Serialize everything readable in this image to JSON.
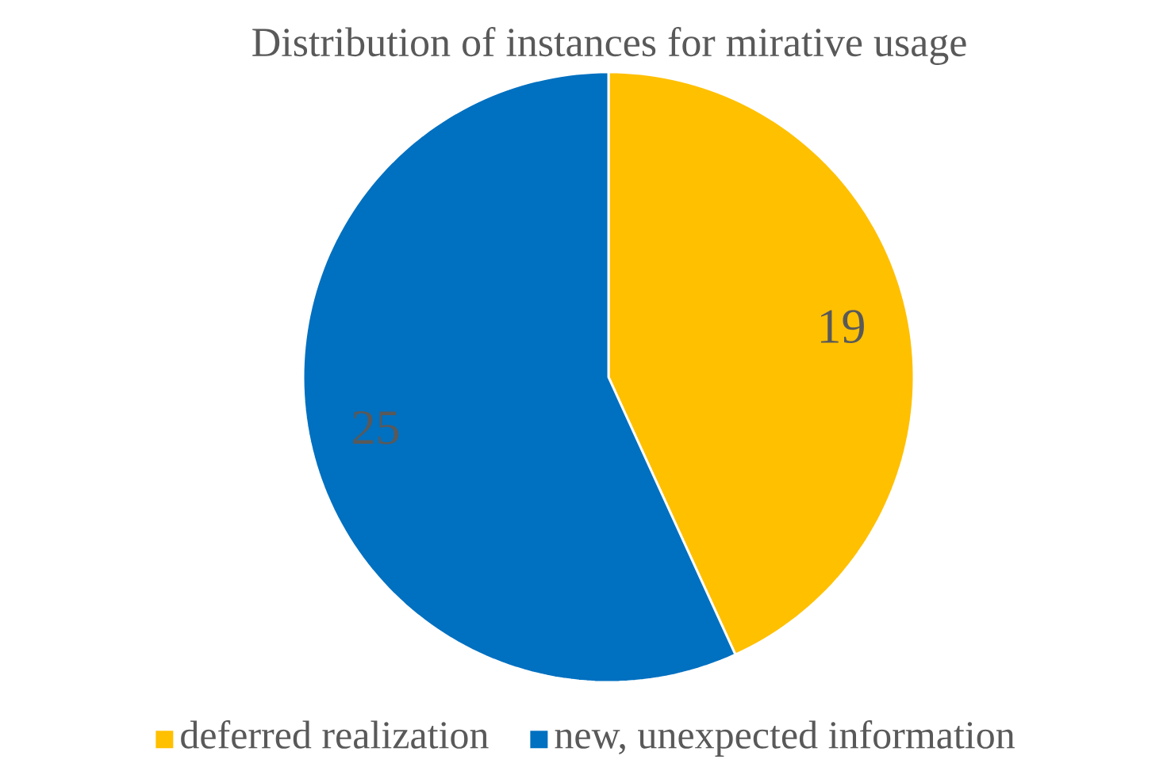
{
  "chart_data": {
    "type": "pie",
    "title": "Distribution of instances for mirative usage",
    "categories": [
      "deferred realization",
      "new, unexpected information"
    ],
    "values": [
      19,
      25
    ],
    "colors": [
      "#ffc000",
      "#0070c0"
    ],
    "data_labels": true,
    "legend": "bottom"
  }
}
